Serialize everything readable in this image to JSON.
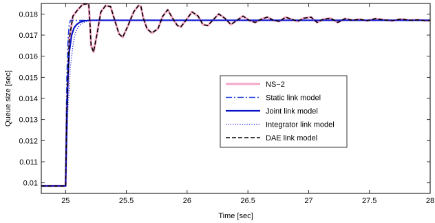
{
  "chart_data": {
    "type": "line",
    "xlabel": "Time [sec]",
    "ylabel": "Queue size [sec]",
    "xlim": [
      24.8,
      28.0
    ],
    "ylim": [
      0.0095,
      0.0185
    ],
    "xticks": [
      25,
      25.5,
      26,
      26.5,
      27,
      27.5,
      28
    ],
    "xtick_labels": [
      "25",
      "25.5",
      "26",
      "26.5",
      "27",
      "27.5",
      "28"
    ],
    "yticks": [
      0.01,
      0.011,
      0.012,
      0.013,
      0.014,
      0.015,
      0.016,
      0.017,
      0.018
    ],
    "ytick_labels": [
      "0.01",
      "0.011",
      "0.012",
      "0.013",
      "0.014",
      "0.015",
      "0.016",
      "0.017",
      "0.018"
    ],
    "grid": false,
    "legend_position": "center-right",
    "series": [
      {
        "name": "NS−2",
        "color": "#f4a6c6",
        "style": "solid",
        "x": [
          24.8,
          25.0,
          25.01,
          25.03,
          25.06,
          25.1,
          25.14,
          25.19,
          25.2,
          25.21,
          25.23,
          25.26,
          25.29,
          25.33,
          25.37,
          25.41,
          25.44,
          25.47,
          25.51,
          25.56,
          25.6,
          25.62,
          25.64,
          25.67,
          25.71,
          25.76,
          25.8,
          25.84,
          25.88,
          25.92,
          25.95,
          25.99,
          26.04,
          26.09,
          26.13,
          26.17,
          26.21,
          26.26,
          26.31,
          26.36,
          26.41,
          26.46,
          26.51,
          26.56,
          26.61,
          26.66,
          26.71,
          26.76,
          26.81,
          26.86,
          26.91,
          26.96,
          27.02,
          27.07,
          27.12,
          27.18,
          27.24,
          27.3,
          27.36,
          27.42,
          27.48,
          27.55,
          27.62,
          27.69,
          27.76,
          27.83,
          27.9,
          27.97,
          28.0
        ],
        "y": [
          0.00985,
          0.00985,
          0.0135,
          0.0168,
          0.0179,
          0.0182,
          0.01845,
          0.0185,
          0.0176,
          0.0165,
          0.0162,
          0.0171,
          0.0181,
          0.0184,
          0.01835,
          0.0176,
          0.01705,
          0.0169,
          0.0174,
          0.0181,
          0.0184,
          0.01835,
          0.0178,
          0.0173,
          0.0171,
          0.0173,
          0.0179,
          0.0182,
          0.0178,
          0.01745,
          0.0174,
          0.0177,
          0.0181,
          0.0179,
          0.0175,
          0.01745,
          0.0177,
          0.018,
          0.0178,
          0.0175,
          0.0177,
          0.0179,
          0.0177,
          0.0176,
          0.01775,
          0.01785,
          0.0177,
          0.01765,
          0.01785,
          0.01775,
          0.01765,
          0.0178,
          0.01785,
          0.0176,
          0.01775,
          0.0178,
          0.0176,
          0.01778,
          0.0177,
          0.01775,
          0.01768,
          0.01778,
          0.01772,
          0.01768,
          0.01776,
          0.0177,
          0.01772,
          0.01768,
          0.0177
        ]
      },
      {
        "name": "Static link model",
        "color": "#1a3de0",
        "style": "dashdot",
        "x": [
          24.8,
          25.0,
          25.005,
          25.01,
          25.02,
          25.03,
          25.04,
          25.05,
          28.0
        ],
        "y": [
          0.00985,
          0.00985,
          0.0125,
          0.015,
          0.0168,
          0.0175,
          0.0177,
          0.0177,
          0.0177
        ]
      },
      {
        "name": "Joint link model",
        "color": "#0a12c8",
        "style": "solid",
        "x": [
          24.8,
          25.0,
          25.01,
          25.02,
          25.03,
          25.05,
          25.07,
          25.09,
          25.12,
          25.16,
          25.22,
          28.0
        ],
        "y": [
          0.00985,
          0.00985,
          0.013,
          0.0151,
          0.0162,
          0.017,
          0.01735,
          0.0175,
          0.01762,
          0.01768,
          0.0177,
          0.0177
        ]
      },
      {
        "name": "Integrator link model",
        "color": "#2a2af0",
        "style": "dotted",
        "x": [
          24.8,
          25.0,
          25.01,
          25.02,
          25.04,
          25.06,
          25.08,
          25.1,
          25.13,
          25.17,
          25.22,
          25.3,
          28.0
        ],
        "y": [
          0.00985,
          0.00985,
          0.0118,
          0.0135,
          0.0155,
          0.0165,
          0.0171,
          0.01735,
          0.01755,
          0.01765,
          0.0177,
          0.0177,
          0.0177
        ]
      },
      {
        "name": "DAE link model",
        "color": "#000000",
        "style": "dashed",
        "x": [
          24.8,
          25.0,
          25.01,
          25.03,
          25.06,
          25.1,
          25.14,
          25.19,
          25.2,
          25.21,
          25.23,
          25.26,
          25.29,
          25.33,
          25.37,
          25.41,
          25.44,
          25.47,
          25.51,
          25.56,
          25.6,
          25.62,
          25.64,
          25.67,
          25.71,
          25.76,
          25.8,
          25.84,
          25.88,
          25.92,
          25.95,
          25.99,
          26.04,
          26.09,
          26.13,
          26.17,
          26.21,
          26.26,
          26.31,
          26.36,
          26.41,
          26.46,
          26.51,
          26.56,
          26.61,
          26.66,
          26.71,
          26.76,
          26.81,
          26.86,
          26.91,
          26.96,
          27.02,
          27.07,
          27.12,
          27.18,
          27.24,
          27.3,
          27.36,
          27.42,
          27.48,
          27.55,
          27.62,
          27.69,
          27.76,
          27.83,
          27.9,
          27.97,
          28.0
        ],
        "y": [
          0.00985,
          0.00985,
          0.0135,
          0.0168,
          0.0179,
          0.0182,
          0.01845,
          0.0185,
          0.0176,
          0.0165,
          0.0162,
          0.0171,
          0.0181,
          0.0184,
          0.01835,
          0.0176,
          0.01705,
          0.0169,
          0.0174,
          0.0181,
          0.0184,
          0.01835,
          0.0178,
          0.0173,
          0.0171,
          0.0173,
          0.0179,
          0.0182,
          0.0178,
          0.01745,
          0.0174,
          0.0177,
          0.0181,
          0.0179,
          0.0175,
          0.01745,
          0.0177,
          0.018,
          0.0178,
          0.0175,
          0.0177,
          0.0179,
          0.0177,
          0.0176,
          0.01775,
          0.01785,
          0.0177,
          0.01765,
          0.01785,
          0.01775,
          0.01765,
          0.0178,
          0.01785,
          0.0176,
          0.01775,
          0.0178,
          0.0176,
          0.01778,
          0.0177,
          0.01775,
          0.01768,
          0.01778,
          0.01772,
          0.01768,
          0.01776,
          0.0177,
          0.01772,
          0.01768,
          0.0177
        ]
      }
    ]
  }
}
